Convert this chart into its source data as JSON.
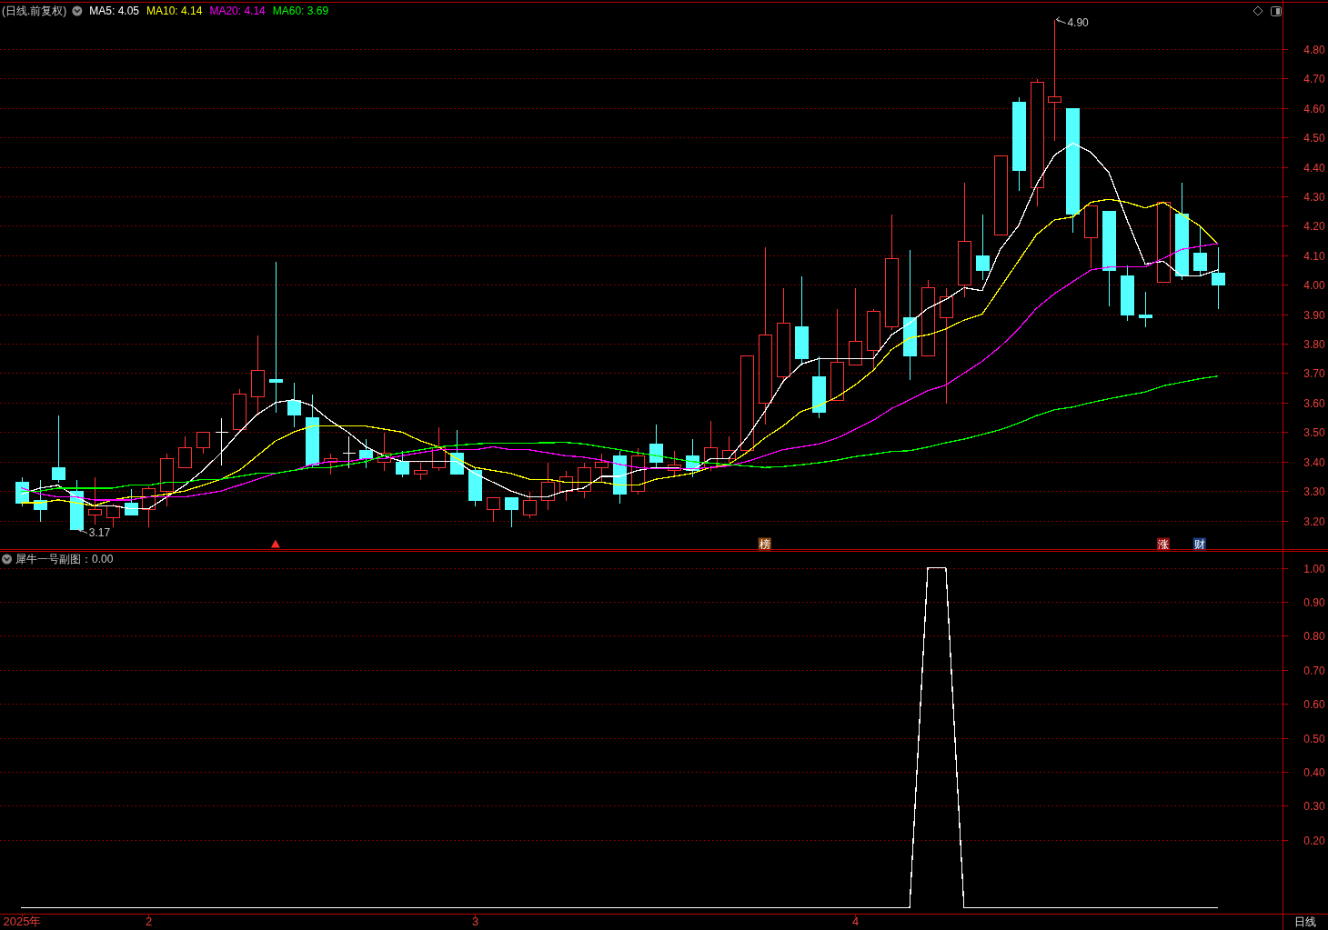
{
  "chart_data": [
    {
      "type": "candlestick",
      "title": "(日线.前复权)",
      "categories": [
        null,
        null,
        null,
        null,
        null,
        null,
        null,
        null,
        null,
        null,
        null,
        null,
        null,
        null,
        null,
        null,
        null,
        null,
        null,
        null,
        null,
        null,
        null,
        null,
        null,
        null,
        null,
        null,
        null,
        null,
        null,
        null,
        null,
        null,
        null,
        null,
        null,
        null,
        null,
        null,
        null,
        null,
        null,
        null,
        null,
        null,
        null,
        null,
        null,
        null,
        null,
        null,
        null,
        null,
        null,
        null,
        null,
        null,
        null,
        null,
        null,
        null,
        null,
        null,
        null,
        null,
        null
      ],
      "ohlc": [
        [
          3.33,
          3.35,
          3.25,
          3.26
        ],
        [
          3.27,
          3.34,
          3.2,
          3.24
        ],
        [
          3.38,
          3.56,
          3.33,
          3.34
        ],
        [
          3.3,
          3.34,
          3.17,
          3.17
        ],
        [
          3.22,
          3.35,
          3.19,
          3.24
        ],
        [
          3.21,
          3.26,
          3.18,
          3.25
        ],
        [
          3.26,
          3.31,
          3.22,
          3.22
        ],
        [
          3.24,
          3.32,
          3.18,
          3.31
        ],
        [
          3.3,
          3.43,
          3.25,
          3.41
        ],
        [
          3.38,
          3.49,
          3.38,
          3.45
        ],
        [
          3.45,
          3.5,
          3.43,
          3.5
        ],
        [
          3.5,
          3.55,
          3.39,
          3.5
        ],
        [
          3.51,
          3.65,
          3.5,
          3.63
        ],
        [
          3.62,
          3.83,
          3.56,
          3.71
        ],
        [
          3.68,
          4.08,
          3.57,
          3.67
        ],
        [
          3.61,
          3.67,
          3.52,
          3.56
        ],
        [
          3.55,
          3.63,
          3.38,
          3.39
        ],
        [
          3.4,
          3.43,
          3.36,
          3.41
        ],
        [
          3.43,
          3.49,
          3.38,
          3.43
        ],
        [
          3.44,
          3.48,
          3.38,
          3.41
        ],
        [
          3.4,
          3.5,
          3.37,
          3.43
        ],
        [
          3.4,
          3.44,
          3.35,
          3.36
        ],
        [
          3.36,
          3.4,
          3.34,
          3.37
        ],
        [
          3.38,
          3.52,
          3.37,
          3.45
        ],
        [
          3.43,
          3.51,
          3.36,
          3.36
        ],
        [
          3.37,
          3.38,
          3.25,
          3.27
        ],
        [
          3.24,
          3.28,
          3.2,
          3.28
        ],
        [
          3.28,
          3.28,
          3.18,
          3.24
        ],
        [
          3.22,
          3.3,
          3.21,
          3.27
        ],
        [
          3.27,
          3.4,
          3.24,
          3.33
        ],
        [
          3.3,
          3.37,
          3.27,
          3.35
        ],
        [
          3.3,
          3.4,
          3.28,
          3.38
        ],
        [
          3.38,
          3.43,
          3.33,
          3.4
        ],
        [
          3.42,
          3.44,
          3.26,
          3.29
        ],
        [
          3.3,
          3.45,
          3.29,
          3.42
        ],
        [
          3.46,
          3.53,
          3.38,
          3.4
        ],
        [
          3.37,
          3.44,
          3.35,
          3.39
        ],
        [
          3.42,
          3.48,
          3.35,
          3.37
        ],
        [
          3.38,
          3.54,
          3.37,
          3.45
        ],
        [
          3.41,
          3.49,
          3.4,
          3.44
        ],
        [
          3.44,
          3.76,
          3.43,
          3.76
        ],
        [
          3.6,
          4.13,
          3.53,
          3.83
        ],
        [
          3.69,
          3.99,
          3.67,
          3.87
        ],
        [
          3.86,
          4.03,
          3.73,
          3.75
        ],
        [
          3.69,
          3.76,
          3.55,
          3.57
        ],
        [
          3.61,
          3.92,
          3.61,
          3.74
        ],
        [
          3.73,
          3.99,
          3.73,
          3.81
        ],
        [
          3.78,
          3.92,
          3.71,
          3.91
        ],
        [
          3.86,
          4.24,
          3.85,
          4.09
        ],
        [
          3.89,
          4.12,
          3.68,
          3.76
        ],
        [
          3.76,
          4.02,
          3.76,
          3.99
        ],
        [
          3.89,
          3.99,
          3.6,
          3.96
        ],
        [
          4.0,
          4.35,
          3.96,
          4.15
        ],
        [
          4.1,
          4.24,
          4.02,
          4.05
        ],
        [
          4.17,
          4.44,
          4.17,
          4.44
        ],
        [
          4.62,
          4.64,
          4.32,
          4.39
        ],
        [
          4.33,
          4.7,
          4.27,
          4.69
        ],
        [
          4.62,
          4.9,
          4.49,
          4.64
        ],
        [
          4.6,
          4.6,
          4.18,
          4.24
        ],
        [
          4.16,
          4.27,
          4.06,
          4.27
        ],
        [
          4.25,
          4.25,
          3.93,
          4.05
        ],
        [
          4.03,
          4.07,
          3.88,
          3.9
        ],
        [
          3.9,
          3.98,
          3.86,
          3.89
        ],
        [
          4.01,
          4.28,
          4.01,
          4.28
        ],
        [
          4.24,
          4.35,
          4.02,
          4.03
        ],
        [
          4.11,
          4.2,
          4.03,
          4.05
        ],
        [
          4.04,
          4.13,
          3.92,
          4.0
        ]
      ],
      "colors": [
        "#54ffff",
        "#54ffff",
        "#54ffff",
        "#54ffff",
        "#ff3232",
        "#ff3232",
        "#54ffff",
        "#ff3232",
        "#ff3232",
        "#ff3232",
        "#ff3232",
        "#ffffff",
        "#ff3232",
        "#ff3232",
        "#54ffff",
        "#54ffff",
        "#54ffff",
        "#ff3232",
        "#ffffff",
        "#54ffff",
        "#ff3232",
        "#54ffff",
        "#ff3232",
        "#ff3232",
        "#54ffff",
        "#54ffff",
        "#ff3232",
        "#54ffff",
        "#ff3232",
        "#ff3232",
        "#ff3232",
        "#ff3232",
        "#ff3232",
        "#54ffff",
        "#ff3232",
        "#54ffff",
        "#ff3232",
        "#54ffff",
        "#ff3232",
        "#ff3232",
        "#ff3232",
        "#ff3232",
        "#ff3232",
        "#54ffff",
        "#54ffff",
        "#ff3232",
        "#ff3232",
        "#ff3232",
        "#ff3232",
        "#54ffff",
        "#ff3232",
        "#ff3232",
        "#ff3232",
        "#54ffff",
        "#ff3232",
        "#54ffff",
        "#ff3232",
        "#ff3232",
        "#54ffff",
        "#ff3232",
        "#54ffff",
        "#54ffff",
        "#54ffff",
        "#ff3232",
        "#54ffff",
        "#54ffff",
        "#54ffff"
      ],
      "series": [
        {
          "type": "line",
          "name": "MA5: 4.05",
          "color": "#ffffff",
          "values": [
            3.29,
            3.31,
            3.32,
            3.28,
            3.25,
            3.25,
            3.24,
            3.24,
            3.28,
            3.32,
            3.37,
            3.43,
            3.5,
            3.56,
            3.6,
            3.61,
            3.59,
            3.54,
            3.5,
            3.45,
            3.42,
            3.4,
            3.4,
            3.4,
            3.4,
            3.36,
            3.33,
            3.3,
            3.28,
            3.28,
            3.3,
            3.31,
            3.35,
            3.35,
            3.37,
            3.38,
            3.38,
            3.37,
            3.41,
            3.41,
            3.48,
            3.57,
            3.67,
            3.73,
            3.75,
            3.75,
            3.75,
            3.75,
            3.83,
            3.87,
            3.92,
            3.95,
            3.99,
            3.98,
            4.12,
            4.2,
            4.34,
            4.44,
            4.48,
            4.45,
            4.38,
            4.22,
            4.07,
            4.08,
            4.03,
            4.03,
            4.05
          ]
        },
        {
          "type": "line",
          "name": "MA10: 4.14",
          "color": "#ffff00",
          "values": [
            3.26,
            3.26,
            3.27,
            3.26,
            3.25,
            3.27,
            3.28,
            3.28,
            3.29,
            3.3,
            3.32,
            3.34,
            3.37,
            3.42,
            3.47,
            3.5,
            3.52,
            3.52,
            3.52,
            3.52,
            3.51,
            3.5,
            3.47,
            3.45,
            3.41,
            3.38,
            3.37,
            3.36,
            3.34,
            3.34,
            3.33,
            3.33,
            3.33,
            3.32,
            3.32,
            3.34,
            3.35,
            3.36,
            3.38,
            3.39,
            3.43,
            3.48,
            3.52,
            3.57,
            3.59,
            3.62,
            3.66,
            3.71,
            3.78,
            3.82,
            3.83,
            3.85,
            3.88,
            3.9,
            3.99,
            4.08,
            4.17,
            4.22,
            4.23,
            4.28,
            4.29,
            4.28,
            4.26,
            4.28,
            4.24,
            4.2,
            4.14
          ]
        },
        {
          "type": "line",
          "name": "MA20: 4.14",
          "color": "#ff00ff",
          "values": [
            3.31,
            3.29,
            3.28,
            3.28,
            3.27,
            3.27,
            3.27,
            3.28,
            3.28,
            3.28,
            3.29,
            3.3,
            3.32,
            3.34,
            3.36,
            3.37,
            3.39,
            3.4,
            3.4,
            3.41,
            3.41,
            3.42,
            3.43,
            3.44,
            3.44,
            3.44,
            3.45,
            3.44,
            3.44,
            3.43,
            3.42,
            3.415,
            3.405,
            3.39,
            3.38,
            3.375,
            3.375,
            3.375,
            3.38,
            3.385,
            3.4,
            3.42,
            3.44,
            3.45,
            3.46,
            3.48,
            3.51,
            3.54,
            3.58,
            3.61,
            3.64,
            3.66,
            3.7,
            3.74,
            3.79,
            3.85,
            3.92,
            3.97,
            4.01,
            4.05,
            4.06,
            4.06,
            4.06,
            4.09,
            4.12,
            4.13,
            4.14
          ]
        },
        {
          "type": "line",
          "name": "MA60: 3.69",
          "color": "#00ff00",
          "values": [
            3.3,
            3.3,
            3.31,
            3.31,
            3.31,
            3.31,
            3.32,
            3.32,
            3.33,
            3.33,
            3.34,
            3.34,
            3.35,
            3.36,
            3.36,
            3.37,
            3.38,
            3.38,
            3.39,
            3.4,
            3.42,
            3.43,
            3.44,
            3.45,
            3.455,
            3.46,
            3.463,
            3.463,
            3.463,
            3.464,
            3.465,
            3.46,
            3.45,
            3.44,
            3.43,
            3.42,
            3.41,
            3.4,
            3.395,
            3.39,
            3.385,
            3.38,
            3.383,
            3.389,
            3.396,
            3.405,
            3.417,
            3.425,
            3.434,
            3.437,
            3.449,
            3.464,
            3.476,
            3.492,
            3.508,
            3.53,
            3.556,
            3.576,
            3.585,
            3.6,
            3.613,
            3.625,
            3.636,
            3.657,
            3.669,
            3.681,
            3.69
          ]
        },
        {
          "type": "scatter",
          "marker": "square",
          "values": [
            null,
            null,
            null,
            null,
            null,
            null,
            null,
            null,
            null,
            null,
            null,
            null,
            null,
            null,
            null,
            null,
            null,
            null,
            null,
            null,
            null,
            null,
            null,
            null,
            null,
            null,
            null,
            null,
            null,
            null,
            null,
            null,
            null,
            null,
            null,
            null,
            null,
            null,
            null,
            null,
            null,
            3.12,
            null,
            null,
            null,
            null,
            null,
            null,
            null,
            null,
            null,
            null,
            null,
            null,
            null,
            null,
            null,
            null,
            null,
            null,
            null,
            null,
            null,
            3.12,
            null,
            3.12,
            null
          ],
          "value_labels": [
            null,
            null,
            null,
            null,
            null,
            null,
            null,
            null,
            null,
            null,
            null,
            null,
            null,
            null,
            null,
            null,
            null,
            null,
            null,
            null,
            null,
            null,
            null,
            null,
            null,
            null,
            null,
            null,
            null,
            null,
            null,
            null,
            null,
            null,
            null,
            null,
            null,
            null,
            null,
            null,
            null,
            "榜",
            null,
            null,
            null,
            null,
            null,
            null,
            null,
            null,
            null,
            null,
            null,
            null,
            null,
            null,
            null,
            null,
            null,
            null,
            null,
            null,
            null,
            "涨",
            null,
            "财",
            null
          ],
          "colors": [
            null,
            null,
            null,
            null,
            null,
            null,
            null,
            null,
            null,
            null,
            null,
            null,
            null,
            null,
            null,
            null,
            null,
            null,
            null,
            null,
            null,
            null,
            null,
            null,
            null,
            null,
            null,
            null,
            null,
            null,
            null,
            null,
            null,
            null,
            null,
            null,
            null,
            null,
            null,
            null,
            null,
            "#8c4a12",
            null,
            null,
            null,
            null,
            null,
            null,
            null,
            null,
            null,
            null,
            null,
            null,
            null,
            null,
            null,
            null,
            null,
            null,
            null,
            null,
            null,
            "#8c1010",
            null,
            "#1c3f7a",
            null
          ]
        },
        {
          "type": "scatter",
          "marker": "triangle",
          "color": "#ff2a2a",
          "values": [
            null,
            null,
            null,
            null,
            null,
            null,
            null,
            null,
            null,
            null,
            null,
            null,
            null,
            null,
            3.12,
            null,
            null,
            null,
            null,
            null,
            null,
            null,
            null,
            null,
            null,
            null,
            null,
            null,
            null,
            null,
            null,
            null,
            null,
            null,
            null,
            null,
            null,
            null,
            null,
            null,
            null,
            null,
            null,
            null,
            null,
            null,
            null,
            null,
            null,
            null,
            null,
            null,
            null,
            null,
            null,
            null,
            null,
            null,
            null,
            null,
            null,
            null,
            null,
            null,
            null,
            null,
            null
          ]
        }
      ],
      "ylim": [
        3.1,
        4.96
      ],
      "yticks": [
        {
          "value": 3.2,
          "label": "3.20"
        },
        {
          "value": 3.3,
          "label": "3.30"
        },
        {
          "value": 3.4,
          "label": "3.40"
        },
        {
          "value": 3.5,
          "label": "3.50"
        },
        {
          "value": 3.6,
          "label": "3.60"
        },
        {
          "value": 3.7,
          "label": "3.70"
        },
        {
          "value": 3.8,
          "label": "3.80"
        },
        {
          "value": 3.9,
          "label": "3.90"
        },
        {
          "value": 4.0,
          "label": "4.00"
        },
        {
          "value": 4.1,
          "label": "4.10"
        },
        {
          "value": 4.2,
          "label": "4.20"
        },
        {
          "value": 4.3,
          "label": "4.30"
        },
        {
          "value": 4.4,
          "label": "4.40"
        },
        {
          "value": 4.5,
          "label": "4.50"
        },
        {
          "value": 4.6,
          "label": "4.60"
        },
        {
          "value": 4.7,
          "label": "4.70"
        },
        {
          "value": 4.8,
          "label": "4.80"
        }
      ],
      "grid": "y",
      "legend": "top left",
      "tick_labels": "y",
      "annotations": [
        "4.90",
        "3.17"
      ]
    },
    {
      "type": "line",
      "title": "犀牛一号副图：0.00",
      "categories": [
        "2025年",
        null,
        null,
        null,
        null,
        null,
        null,
        "2",
        null,
        null,
        null,
        null,
        null,
        null,
        null,
        null,
        null,
        null,
        null,
        null,
        null,
        null,
        null,
        null,
        null,
        "3",
        null,
        null,
        null,
        null,
        null,
        null,
        null,
        null,
        null,
        null,
        null,
        null,
        null,
        null,
        null,
        null,
        null,
        null,
        null,
        null,
        "4",
        null,
        null,
        null,
        null,
        null,
        null,
        null,
        null,
        null,
        null,
        null,
        null,
        null,
        null,
        null,
        null,
        null,
        null,
        null,
        null
      ],
      "values": [
        0,
        0,
        0,
        0,
        0,
        0,
        0,
        0,
        0,
        0,
        0,
        0,
        0,
        0,
        0,
        0,
        0,
        0,
        0,
        0,
        0,
        0,
        0,
        0,
        0,
        0,
        0,
        0,
        0,
        0,
        0,
        0,
        0,
        0,
        0,
        0,
        0,
        0,
        0,
        0,
        0,
        0,
        0,
        0,
        0,
        0,
        0,
        0,
        0,
        0,
        1,
        1,
        0,
        0,
        0,
        0,
        0,
        0,
        0,
        0,
        0,
        0,
        0,
        0,
        0,
        0,
        0
      ],
      "color": "#ffffff",
      "ylim": [
        -0.02,
        1.05
      ],
      "yticks": [
        {
          "value": 0.2,
          "label": "0.20"
        },
        {
          "value": 0.3,
          "label": "0.30"
        },
        {
          "value": 0.4,
          "label": "0.40"
        },
        {
          "value": 0.5,
          "label": "0.50"
        },
        {
          "value": 0.6,
          "label": "0.60"
        },
        {
          "value": 0.7,
          "label": "0.70"
        },
        {
          "value": 0.8,
          "label": "0.80"
        },
        {
          "value": 0.9,
          "label": "0.90"
        },
        {
          "value": 1.0,
          "label": "1.00"
        }
      ],
      "grid": "y",
      "annotations": [
        "日线"
      ]
    }
  ]
}
